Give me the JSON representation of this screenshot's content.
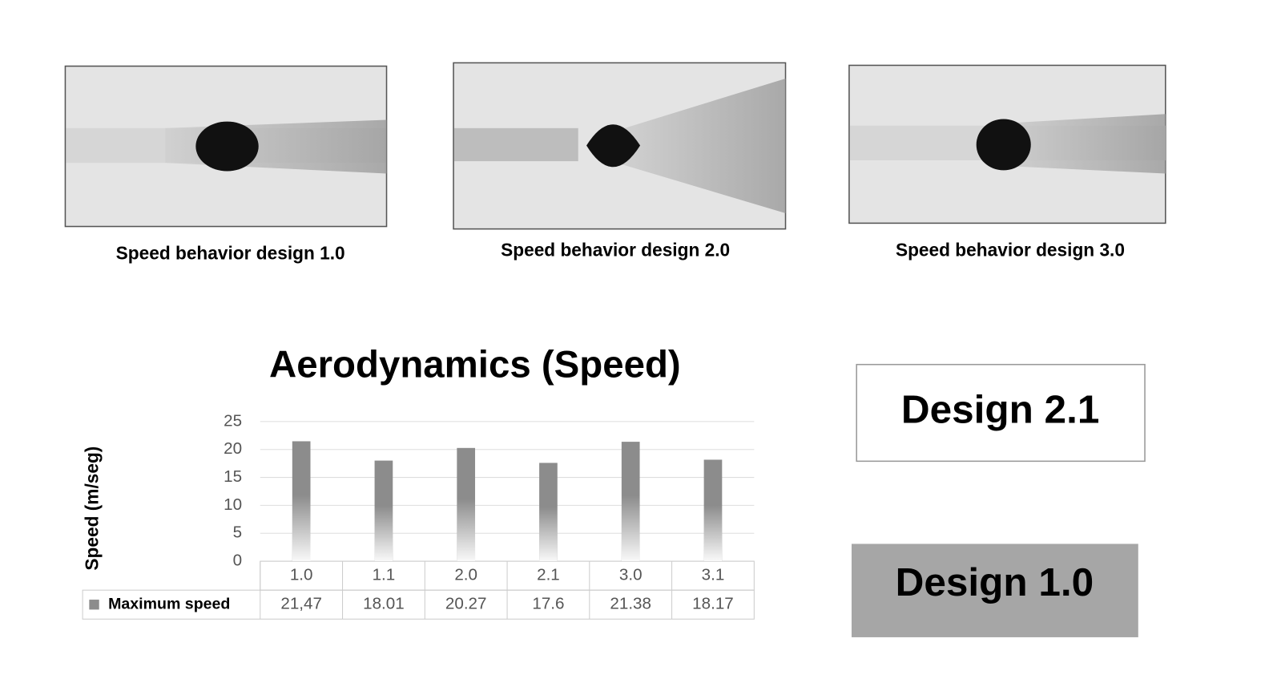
{
  "images": [
    {
      "caption": "Speed behavior design 1.0"
    },
    {
      "caption": "Speed behavior design 2.0"
    },
    {
      "caption": "Speed behavior design 3.0"
    }
  ],
  "chart_data": {
    "type": "bar",
    "title": "Aerodynamics (Speed)",
    "y_label": "Speed (m/seg)",
    "categories": [
      "1.0",
      "1.1",
      "2.0",
      "2.1",
      "3.0",
      "3.1"
    ],
    "series": [
      {
        "name": "Maximum speed",
        "color": "#8c8c8c",
        "values": [
          21.47,
          18.01,
          20.27,
          17.6,
          21.38,
          18.17
        ],
        "value_labels": [
          "21,47",
          "18.01",
          "20.27",
          "17.6",
          "21.38",
          "18.17"
        ]
      }
    ],
    "ylim": [
      0,
      25
    ],
    "yticks": [
      0,
      5,
      10,
      15,
      20,
      25
    ],
    "grid": true,
    "data_table": true
  },
  "boxes": [
    {
      "label": "Design 2.1",
      "fill": "#ffffff"
    },
    {
      "label": "Design 1.0",
      "fill": "#a6a6a6"
    }
  ]
}
